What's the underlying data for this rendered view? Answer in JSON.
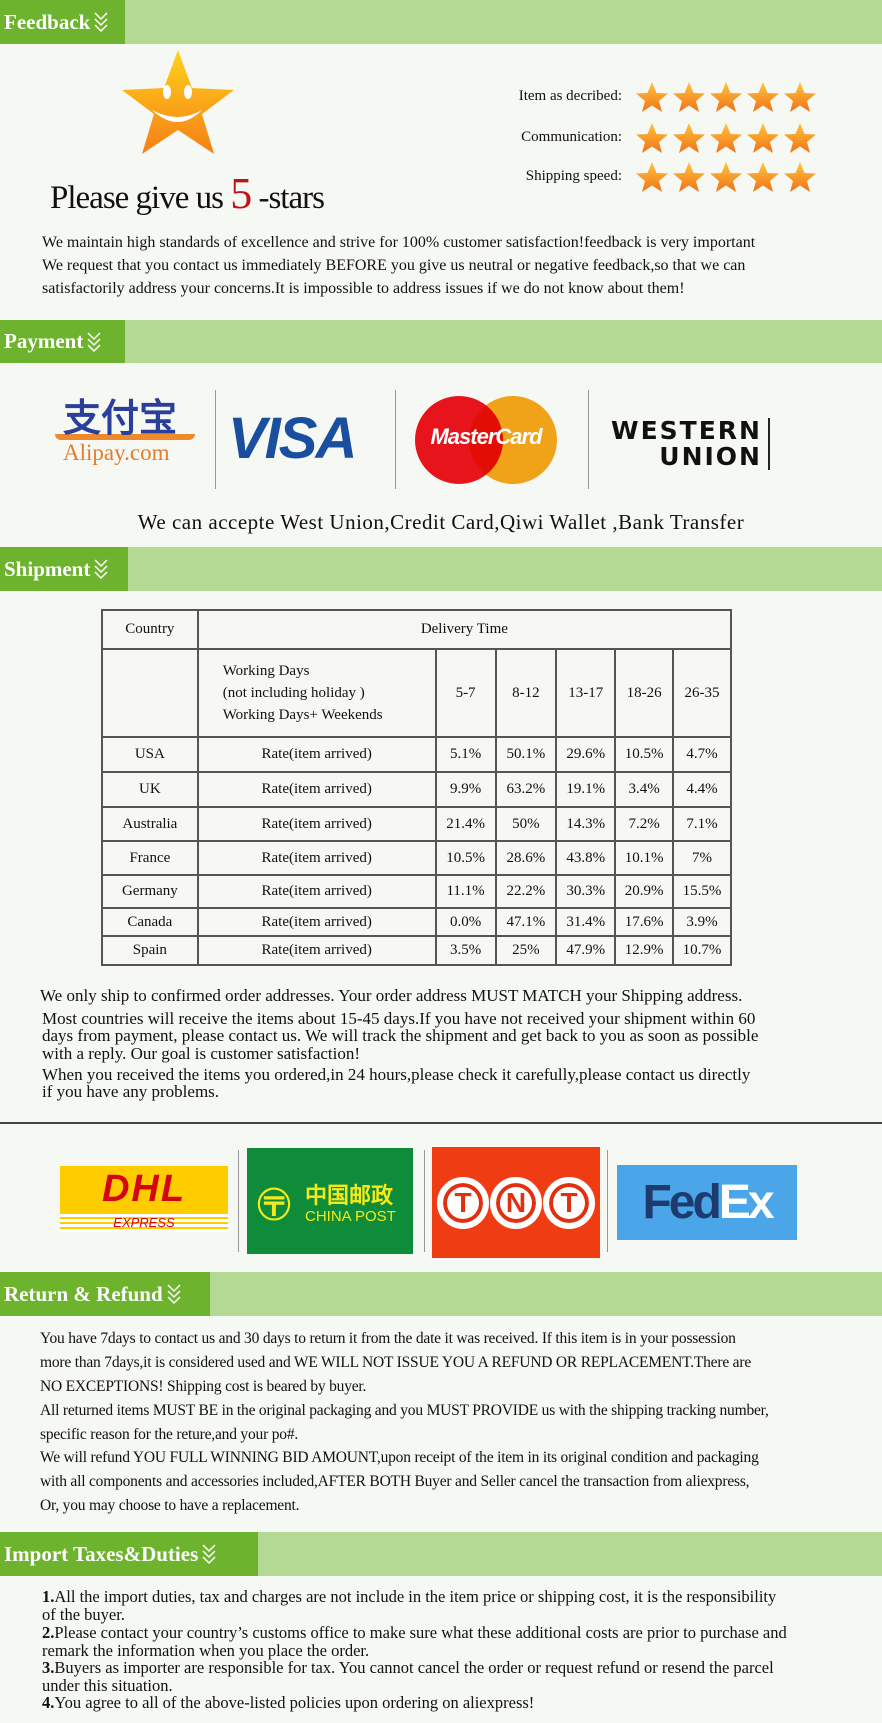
{
  "sections": {
    "feedback": "Feedback",
    "payment": "Payment",
    "shipment": "Shipment",
    "return": "Return & Refund",
    "import": "Import Taxes&Duties"
  },
  "feedback": {
    "slogan_pre": "Please give us",
    "slogan_num": "5",
    "slogan_post": "-stars",
    "ratings": [
      {
        "label": "Item as decribed:",
        "stars": 5
      },
      {
        "label": "Communication:",
        "stars": 5
      },
      {
        "label": "Shipping speed:",
        "stars": 5
      }
    ],
    "lines": [
      "We maintain high standards of excellence and strive for 100% customer satisfaction!feedback is very important",
      "We request that you contact us immediately BEFORE you give us neutral or negative feedback,so that we can",
      "satisfactorily address your concerns.It is impossible to address issues if we do not know about them!"
    ]
  },
  "payment": {
    "logos": {
      "alipay_cn": "支付宝",
      "alipay": "Alipay.com",
      "visa": "VISA",
      "mastercard": "MasterCard",
      "wu1": "WESTERN",
      "wu2": "UNION"
    },
    "text": "We can accepte West Union,Credit Card,Qiwi Wallet ,Bank Transfer"
  },
  "shipment": {
    "table": {
      "country_header": "Country",
      "delivery_header": "Delivery Time",
      "subheader": [
        "Working Days",
        "(not including holiday )",
        "Working Days+ Weekends"
      ],
      "ranges": [
        "5-7",
        "8-12",
        "13-17",
        "18-26",
        "26-35"
      ],
      "rows": [
        {
          "country": "USA",
          "label": "Rate(item arrived)",
          "values": [
            "5.1%",
            "50.1%",
            "29.6%",
            "10.5%",
            "4.7%"
          ]
        },
        {
          "country": "UK",
          "label": "Rate(item arrived)",
          "values": [
            "9.9%",
            "63.2%",
            "19.1%",
            "3.4%",
            "4.4%"
          ]
        },
        {
          "country": "Australia",
          "label": "Rate(item arrived)",
          "values": [
            "21.4%",
            "50%",
            "14.3%",
            "7.2%",
            "7.1%"
          ]
        },
        {
          "country": "France",
          "label": "Rate(item arrived)",
          "values": [
            "10.5%",
            "28.6%",
            "43.8%",
            "10.1%",
            "7%"
          ]
        },
        {
          "country": "Germany",
          "label": "Rate(item arrived)",
          "values": [
            "11.1%",
            "22.2%",
            "30.3%",
            "20.9%",
            "15.5%"
          ]
        },
        {
          "country": "Canada",
          "label": "Rate(item arrived)",
          "values": [
            "0.0%",
            "47.1%",
            "31.4%",
            "17.6%",
            "3.9%"
          ]
        },
        {
          "country": "Spain",
          "label": "Rate(item arrived)",
          "values": [
            "3.5%",
            "25%",
            "47.9%",
            "12.9%",
            "10.7%"
          ]
        }
      ]
    },
    "lines": [
      "We only ship to confirmed order addresses. Your order address MUST MATCH your Shipping address.",
      "Most countries will receive the items about 15-45 days.If you have not received your shipment within 60",
      "days from payment, please contact us. We will track the shipment and get back to you as soon as possible",
      "with a reply. Our goal is customer satisfaction!",
      "When you received the items you ordered,in 24 hours,please check it carefully,please contact us directly",
      "if you have any problems."
    ],
    "carriers": {
      "dhl": "DHL",
      "dhl_sub": "EXPRESS",
      "chinapost_cn": "中国邮政",
      "chinapost": "CHINA POST",
      "tnt": [
        "T",
        "N",
        "T"
      ],
      "fedex_a": "Fed",
      "fedex_b": "Ex"
    }
  },
  "return": {
    "lines": [
      "You have 7days to contact us and 30 days to return it from the date it was received. If this item is in your possession",
      "more than 7days,it is considered used and WE WILL NOT ISSUE YOU A REFUND OR REPLACEMENT.There are",
      " NO EXCEPTIONS! Shipping cost is beared by buyer.",
      "All returned items MUST BE in the original packaging and you MUST PROVIDE us with the shipping tracking number,",
      "specific reason for the reture,and your po#.",
      "We will refund YOU FULL WINNING BID AMOUNT,upon receipt of the item in its original condition and packaging",
      "with all components and accessories included,AFTER BOTH Buyer and Seller cancel the transaction from aliexpress,",
      "Or, you may choose to have a replacement."
    ]
  },
  "import": {
    "items": [
      {
        "num": "1.",
        "text": "All the import duties, tax and charges are not include in the item price or shipping cost, it is the responsibility",
        "cont": "of the buyer."
      },
      {
        "num": "2.",
        "text": "Please contact your country’s customs office to make sure what these additional costs are prior to purchase and",
        "cont": "remark the information when you place the order."
      },
      {
        "num": "3.",
        "text": "Buyers as importer are responsible for tax. You cannot cancel the order or request refund or resend the parcel",
        "cont": "under this situation."
      },
      {
        "num": "4.",
        "text": "You agree to all of the above-listed policies upon ordering on aliexpress!",
        "cont": ""
      }
    ]
  },
  "colors": {
    "tab": "#6db32e",
    "bar": "#b3d993",
    "star": "#f7931e"
  }
}
